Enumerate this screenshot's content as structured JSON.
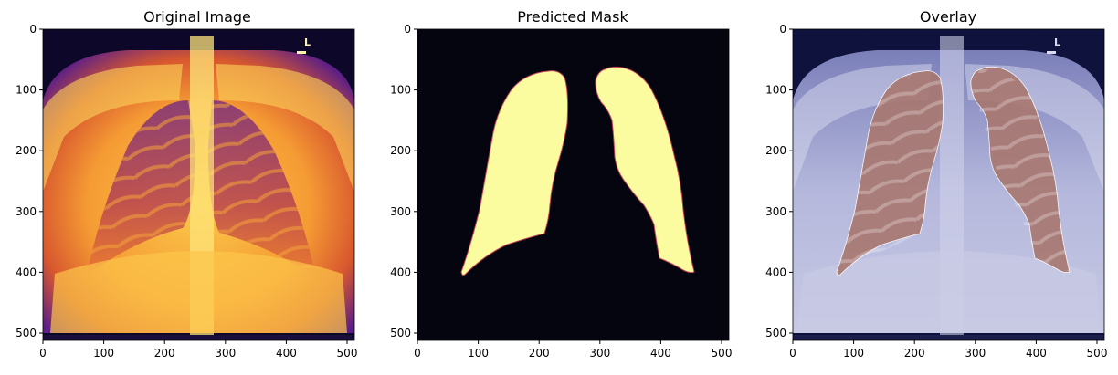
{
  "figure": {
    "panels": [
      {
        "title": "Original Image",
        "kind": "xray-inferno"
      },
      {
        "title": "Predicted Mask",
        "kind": "mask"
      },
      {
        "title": "Overlay",
        "kind": "overlay"
      }
    ],
    "axis": {
      "x_ticks": [
        "0",
        "100",
        "200",
        "300",
        "400",
        "500"
      ],
      "y_ticks": [
        "0",
        "100",
        "200",
        "300",
        "400",
        "500"
      ],
      "xlim": [
        0,
        512
      ],
      "ylim": [
        512,
        0
      ]
    },
    "marker_letter": "L",
    "colors": {
      "inferno_dark": "#0d0829",
      "inferno_purple": "#5c1f86",
      "inferno_orange": "#f58e2f",
      "inferno_yellow": "#fcf9a4",
      "mask_bg": "#05050f",
      "mask_fg": "#fbfca0",
      "overlay_base": "#a3a6cf",
      "overlay_lung": "#b78a86"
    }
  }
}
